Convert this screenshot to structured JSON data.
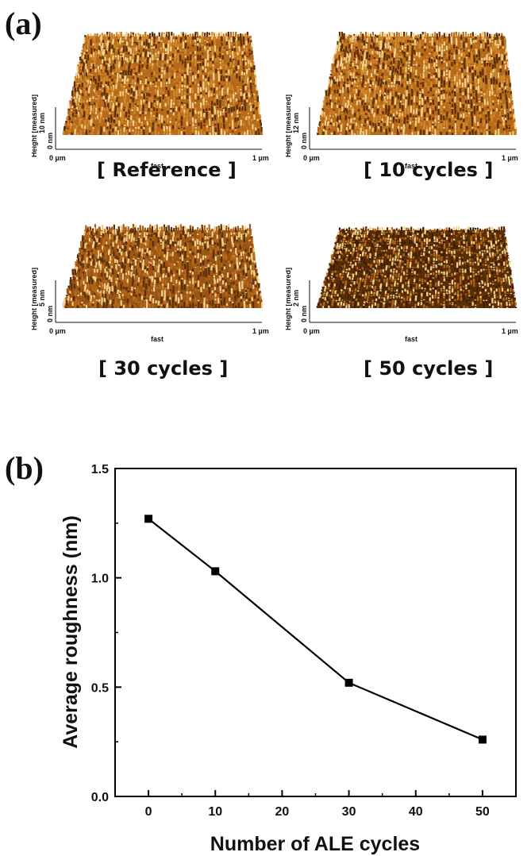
{
  "panel_a": {
    "label": "(a)",
    "images": [
      {
        "caption": "[ Reference ]",
        "z_scale": "10 nm",
        "z_zero": "0 nm",
        "z_axis": "Height [measured]",
        "x_start": "0 µm",
        "x_mid": "fast",
        "x_end": "1 µm"
      },
      {
        "caption": "[ 10 cycles ]",
        "z_scale": "12 nm",
        "z_zero": "0 nm",
        "z_axis": "Height [measured]",
        "x_start": "0 µm",
        "x_mid": "fast",
        "x_end": "1 µm"
      },
      {
        "caption": "[ 30 cycles ]",
        "z_scale": "5 nm",
        "z_zero": "0 nm",
        "z_axis": "Height [measured]",
        "x_start": "0 µm",
        "x_mid": "fast",
        "x_end": "1 µm"
      },
      {
        "caption": "[ 50 cycles ]",
        "z_scale": "2 nm",
        "z_zero": "0 nm",
        "z_axis": "Height [measured]",
        "x_start": "0 µm",
        "x_mid": "fast",
        "x_end": "1 µm"
      }
    ]
  },
  "panel_b": {
    "label": "(b)"
  },
  "chart_data": {
    "type": "line",
    "xlabel": "Number of ALE cycles",
    "ylabel": "Average roughness (nm)",
    "x": [
      0,
      10,
      30,
      50
    ],
    "series": [
      {
        "values": [
          1.27,
          1.03,
          0.52,
          0.26
        ]
      }
    ],
    "xlim": [
      -5,
      55
    ],
    "ylim": [
      0,
      1.5
    ],
    "xticks": [
      0,
      10,
      20,
      30,
      40,
      50
    ],
    "yticks": [
      0.0,
      0.5,
      1.0,
      1.5
    ],
    "ytick_labels": [
      "0.0",
      "0.5",
      "1.0",
      "1.5"
    ],
    "marker": "square",
    "line_color": "#000000",
    "grid": false
  },
  "colors": {
    "afm_dark": "#5a2e08",
    "afm_mid": "#b86a1a",
    "afm_light": "#f2d28a"
  }
}
